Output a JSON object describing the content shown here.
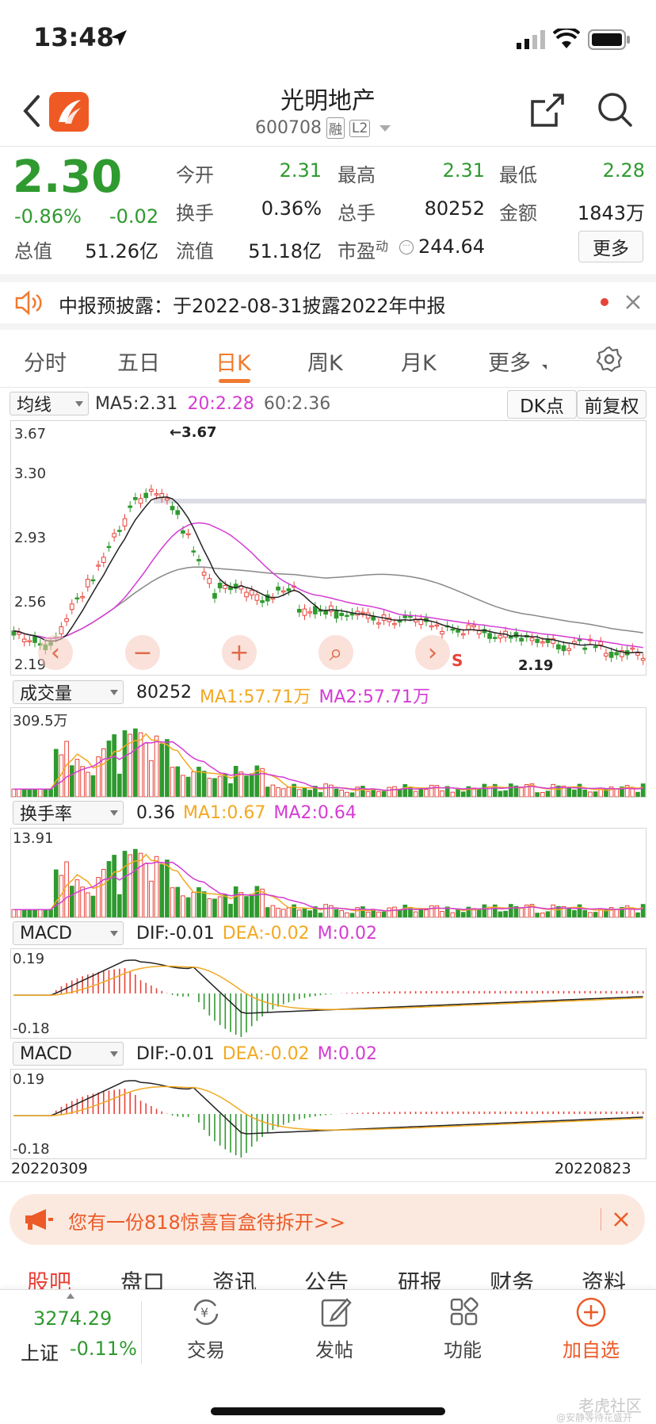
{
  "status_bar": {
    "time": "13:48"
  },
  "header": {
    "title": "光明地产",
    "code": "600708",
    "badge1": "融",
    "badge2": "L2"
  },
  "quote": {
    "price": "2.30",
    "change_pct": "-0.86%",
    "change": "-0.02",
    "open_label": "今开",
    "open": "2.31",
    "high_label": "最高",
    "high": "2.31",
    "low_label": "最低",
    "low": "2.28",
    "turnover_label": "换手",
    "turnover": "0.36%",
    "volume_label": "总手",
    "volume": "80252",
    "amount_label": "金额",
    "amount": "1843万",
    "mcap_label": "总值",
    "mcap": "51.26亿",
    "float_label": "流值",
    "float_cap": "51.18亿",
    "pe_label": "市盈",
    "pe_sup": "动",
    "pe": "244.64",
    "more_label": "更多"
  },
  "notice": {
    "text": "中报预披露：于2022-08-31披露2022年中报"
  },
  "tabs": [
    {
      "label": "分时"
    },
    {
      "label": "五日"
    },
    {
      "label": "日K"
    },
    {
      "label": "周K"
    },
    {
      "label": "月K"
    },
    {
      "label": "更多"
    }
  ],
  "kline": {
    "indicator": "均线",
    "ma5": "MA5:2.31",
    "ma20": "20:2.28",
    "ma60": "60:2.36",
    "dk_label": "DK点",
    "adj_label": "前复权",
    "y_ticks": [
      "3.67",
      "3.30",
      "2.93",
      "2.56",
      "2.19"
    ],
    "high_mark": "←3.67",
    "low_mark": "2.19",
    "signal_s": "S"
  },
  "volume": {
    "indicator": "成交量",
    "value": "80252",
    "ma1": "MA1:57.71万",
    "ma2": "MA2:57.71万",
    "y_top": "309.5万"
  },
  "turnover_chart": {
    "indicator": "换手率",
    "value": "0.36",
    "ma1": "MA1:0.67",
    "ma2": "MA2:0.64",
    "y_top": "13.91"
  },
  "macd1": {
    "indicator": "MACD",
    "dif": "DIF:-0.01",
    "dea": "DEA:-0.02",
    "m": "M:0.02",
    "y_top": "0.19",
    "y_bot": "-0.18"
  },
  "macd2": {
    "indicator": "MACD",
    "dif": "DIF:-0.01",
    "dea": "DEA:-0.02",
    "m": "M:0.02",
    "y_top": "0.19",
    "y_bot": "-0.18"
  },
  "dates": {
    "start": "20220309",
    "end": "20220823"
  },
  "promo": {
    "text": "您有一份818惊喜盲盒待拆开>>"
  },
  "sub_tabs": [
    {
      "label": "股吧"
    },
    {
      "label": "盘口"
    },
    {
      "label": "资讯"
    },
    {
      "label": "公告"
    },
    {
      "label": "研报"
    },
    {
      "label": "财务"
    },
    {
      "label": "资料"
    }
  ],
  "bottom_bar": {
    "index_value": "3274.29",
    "index_name": "上证",
    "index_change": "-0.11%",
    "trade": "交易",
    "post": "发帖",
    "func": "功能",
    "add": "加自选"
  },
  "watermark": {
    "brand": "老虎社区",
    "user": "@安静等待花盛开"
  },
  "colors": {
    "up": "#e8433a",
    "down": "#2f9a2f",
    "accent": "#f07a30",
    "ma20": "#d43cd4"
  }
}
